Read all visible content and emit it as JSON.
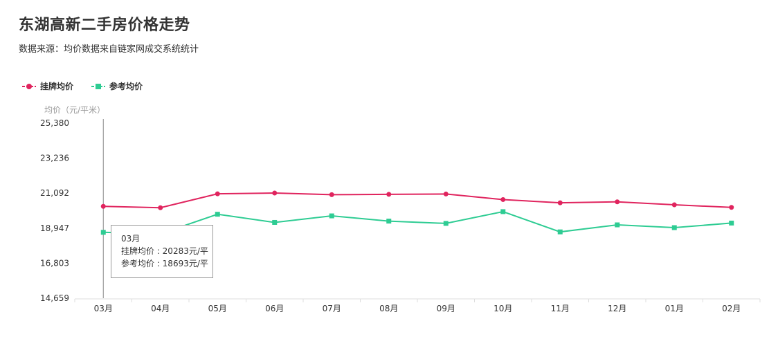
{
  "title": "东湖高新二手房价格走势",
  "subtitle": "数据来源：均价数据来自链家网成交系统统计",
  "colors": {
    "listing": "#e0245e",
    "reference": "#2ecc93",
    "axis": "#999999",
    "text": "#333333"
  },
  "legend": [
    {
      "name": "挂牌均价",
      "color": "#e0245e",
      "marker": "circle"
    },
    {
      "name": "参考均价",
      "color": "#2ecc93",
      "marker": "square"
    }
  ],
  "tooltip": {
    "month": "03月",
    "line1": "挂牌均价 : 20283元/平",
    "line2": "参考均价 : 18693元/平"
  },
  "chart_data": {
    "type": "line",
    "title": "东湖高新二手房价格走势",
    "ylabel": "均价（元/平米）",
    "xlabel": "",
    "ylim": [
      14659,
      25380
    ],
    "yticks": [
      "25,380",
      "23,236",
      "21,092",
      "18,947",
      "16,803",
      "14,659"
    ],
    "ytick_values": [
      25380,
      23236,
      21092,
      18947,
      16803,
      14659
    ],
    "categories": [
      "03月",
      "04月",
      "05月",
      "06月",
      "07月",
      "08月",
      "09月",
      "10月",
      "11月",
      "12月",
      "01月",
      "02月"
    ],
    "legend_position": "top-left",
    "grid": false,
    "series": [
      {
        "name": "挂牌均价",
        "color": "#e0245e",
        "marker": "circle",
        "values": [
          20283,
          20200,
          21050,
          21100,
          21000,
          21020,
          21040,
          20700,
          20500,
          20560,
          20380,
          20220
        ]
      },
      {
        "name": "参考均价",
        "color": "#2ecc93",
        "marker": "square",
        "values": [
          18693,
          18600,
          19800,
          19300,
          19700,
          19380,
          19240,
          19960,
          18720,
          19150,
          18980,
          19260
        ]
      }
    ]
  }
}
